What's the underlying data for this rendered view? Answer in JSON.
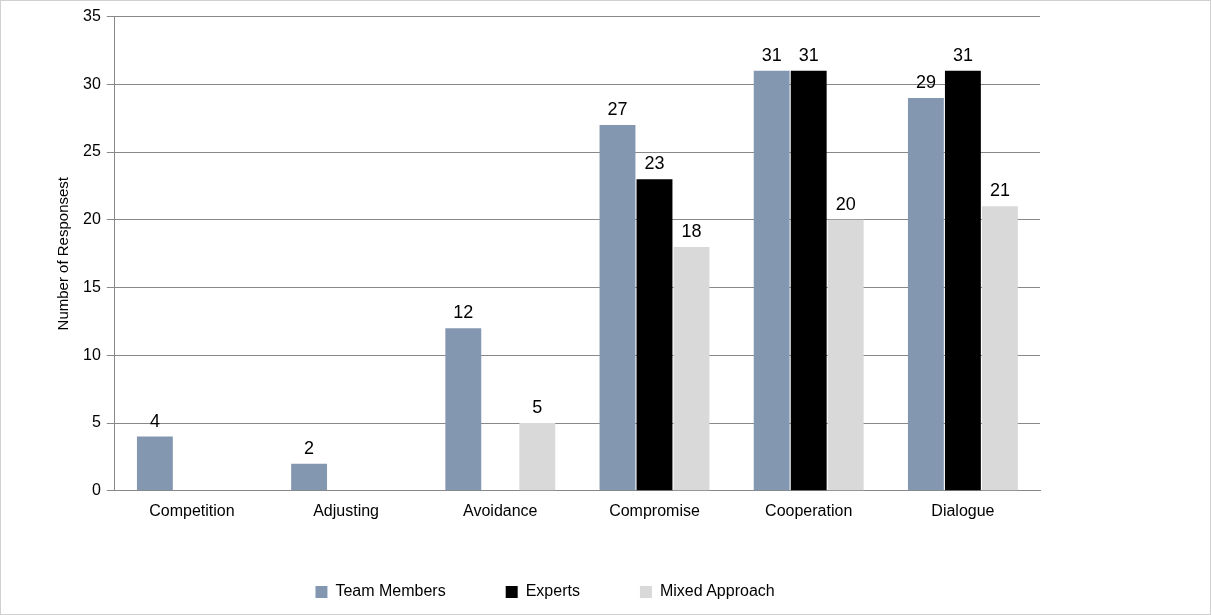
{
  "chart_data": {
    "type": "bar",
    "ylabel": "Number of Responsest",
    "categories": [
      "Competition",
      "Adjusting",
      "Avoidance",
      "Compromise",
      "Cooperation",
      "Dialogue"
    ],
    "series": [
      {
        "name": "Team Members",
        "color": "#8497b0",
        "values": [
          4,
          2,
          12,
          27,
          31,
          29
        ]
      },
      {
        "name": "Experts",
        "color": "#000000",
        "values": [
          null,
          null,
          null,
          23,
          31,
          31
        ]
      },
      {
        "name": "Mixed Approach",
        "color": "#d9d9d9",
        "values": [
          null,
          null,
          5,
          18,
          20,
          21
        ]
      }
    ],
    "ylim": [
      0,
      35
    ],
    "yticks": [
      0,
      5,
      10,
      15,
      20,
      25,
      30,
      35
    ],
    "grid": "y",
    "legend": "bottom",
    "data_labels": true
  }
}
